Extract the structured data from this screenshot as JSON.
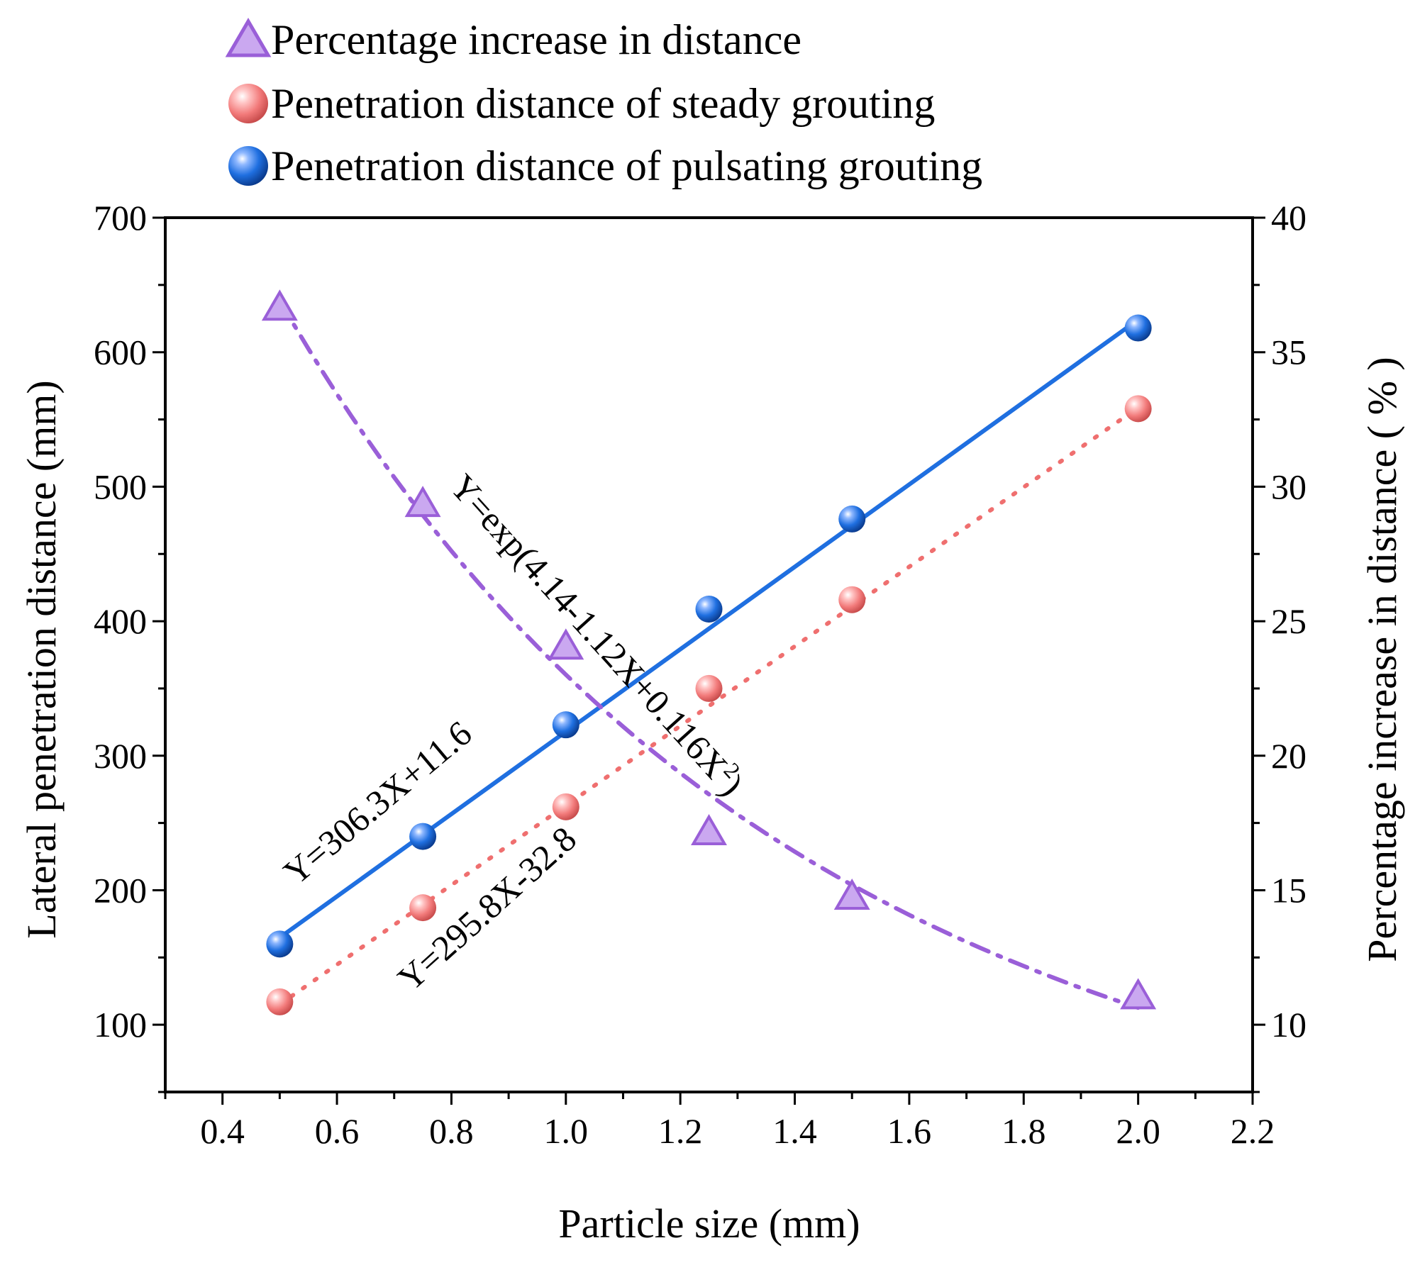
{
  "chart_data": {
    "type": "line",
    "xlabel": "Particle size (mm)",
    "ylabel": "Lateral penetration distance (mm)",
    "y2label": "Percentage increase in distance ( % )",
    "xlim": [
      0.3,
      2.2
    ],
    "ylim": [
      50,
      700
    ],
    "y2lim": [
      7.5,
      40
    ],
    "x_ticks": [
      "0.4",
      "0.6",
      "0.8",
      "1.0",
      "1.2",
      "1.4",
      "1.6",
      "1.8",
      "2.0",
      "2.2"
    ],
    "y_ticks": [
      "100",
      "200",
      "300",
      "400",
      "500",
      "600",
      "700"
    ],
    "y2_ticks": [
      "10",
      "15",
      "20",
      "25",
      "30",
      "35",
      "40"
    ],
    "legend": [
      "Percentage increase in distance",
      "Penetration distance of steady grouting",
      "Penetration distance of pulsating grouting"
    ],
    "x": [
      0.5,
      0.75,
      1.0,
      1.25,
      1.5,
      2.0
    ],
    "series": [
      {
        "name": "Percentage increase in distance",
        "axis": "right",
        "values": [
          36.7,
          29.4,
          24.1,
          17.2,
          14.8,
          11.1
        ],
        "color": "#9a5fd8"
      },
      {
        "name": "Penetration distance of steady grouting",
        "axis": "left",
        "values": [
          117,
          187,
          262,
          350,
          416,
          558
        ],
        "color": "#ef6f6f"
      },
      {
        "name": "Penetration distance of pulsating grouting",
        "axis": "left",
        "values": [
          160,
          240,
          323,
          409,
          476,
          618
        ],
        "color": "#1f6fe0"
      }
    ],
    "annotations": {
      "exp_fit_main": "Y=exp(4.14-1.12X+0.116X",
      "exp_fit_sup": "2",
      "exp_fit_close": ")",
      "pulsating_fit": "Y=306.3X+11.6",
      "steady_fit": "Y=295.8X-32.8"
    }
  }
}
